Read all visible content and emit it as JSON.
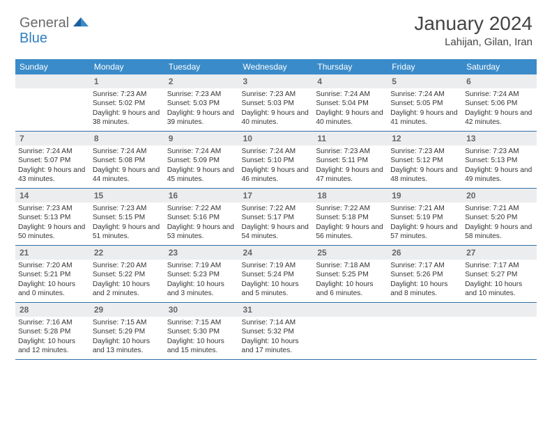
{
  "brand": {
    "part1": "General",
    "part2": "Blue"
  },
  "title": "January 2024",
  "location": "Lahijan, Gilan, Iran",
  "headerColor": "#3a8bc9",
  "borderColor": "#2f6fa8",
  "dayHeaderBg": "#ebedef",
  "weekdays": [
    "Sunday",
    "Monday",
    "Tuesday",
    "Wednesday",
    "Thursday",
    "Friday",
    "Saturday"
  ],
  "weeks": [
    [
      null,
      {
        "n": "1",
        "sr": "7:23 AM",
        "ss": "5:02 PM",
        "dl": "9 hours and 38 minutes."
      },
      {
        "n": "2",
        "sr": "7:23 AM",
        "ss": "5:03 PM",
        "dl": "9 hours and 39 minutes."
      },
      {
        "n": "3",
        "sr": "7:23 AM",
        "ss": "5:03 PM",
        "dl": "9 hours and 40 minutes."
      },
      {
        "n": "4",
        "sr": "7:24 AM",
        "ss": "5:04 PM",
        "dl": "9 hours and 40 minutes."
      },
      {
        "n": "5",
        "sr": "7:24 AM",
        "ss": "5:05 PM",
        "dl": "9 hours and 41 minutes."
      },
      {
        "n": "6",
        "sr": "7:24 AM",
        "ss": "5:06 PM",
        "dl": "9 hours and 42 minutes."
      }
    ],
    [
      {
        "n": "7",
        "sr": "7:24 AM",
        "ss": "5:07 PM",
        "dl": "9 hours and 43 minutes."
      },
      {
        "n": "8",
        "sr": "7:24 AM",
        "ss": "5:08 PM",
        "dl": "9 hours and 44 minutes."
      },
      {
        "n": "9",
        "sr": "7:24 AM",
        "ss": "5:09 PM",
        "dl": "9 hours and 45 minutes."
      },
      {
        "n": "10",
        "sr": "7:24 AM",
        "ss": "5:10 PM",
        "dl": "9 hours and 46 minutes."
      },
      {
        "n": "11",
        "sr": "7:23 AM",
        "ss": "5:11 PM",
        "dl": "9 hours and 47 minutes."
      },
      {
        "n": "12",
        "sr": "7:23 AM",
        "ss": "5:12 PM",
        "dl": "9 hours and 48 minutes."
      },
      {
        "n": "13",
        "sr": "7:23 AM",
        "ss": "5:13 PM",
        "dl": "9 hours and 49 minutes."
      }
    ],
    [
      {
        "n": "14",
        "sr": "7:23 AM",
        "ss": "5:13 PM",
        "dl": "9 hours and 50 minutes."
      },
      {
        "n": "15",
        "sr": "7:23 AM",
        "ss": "5:15 PM",
        "dl": "9 hours and 51 minutes."
      },
      {
        "n": "16",
        "sr": "7:22 AM",
        "ss": "5:16 PM",
        "dl": "9 hours and 53 minutes."
      },
      {
        "n": "17",
        "sr": "7:22 AM",
        "ss": "5:17 PM",
        "dl": "9 hours and 54 minutes."
      },
      {
        "n": "18",
        "sr": "7:22 AM",
        "ss": "5:18 PM",
        "dl": "9 hours and 56 minutes."
      },
      {
        "n": "19",
        "sr": "7:21 AM",
        "ss": "5:19 PM",
        "dl": "9 hours and 57 minutes."
      },
      {
        "n": "20",
        "sr": "7:21 AM",
        "ss": "5:20 PM",
        "dl": "9 hours and 58 minutes."
      }
    ],
    [
      {
        "n": "21",
        "sr": "7:20 AM",
        "ss": "5:21 PM",
        "dl": "10 hours and 0 minutes."
      },
      {
        "n": "22",
        "sr": "7:20 AM",
        "ss": "5:22 PM",
        "dl": "10 hours and 2 minutes."
      },
      {
        "n": "23",
        "sr": "7:19 AM",
        "ss": "5:23 PM",
        "dl": "10 hours and 3 minutes."
      },
      {
        "n": "24",
        "sr": "7:19 AM",
        "ss": "5:24 PM",
        "dl": "10 hours and 5 minutes."
      },
      {
        "n": "25",
        "sr": "7:18 AM",
        "ss": "5:25 PM",
        "dl": "10 hours and 6 minutes."
      },
      {
        "n": "26",
        "sr": "7:17 AM",
        "ss": "5:26 PM",
        "dl": "10 hours and 8 minutes."
      },
      {
        "n": "27",
        "sr": "7:17 AM",
        "ss": "5:27 PM",
        "dl": "10 hours and 10 minutes."
      }
    ],
    [
      {
        "n": "28",
        "sr": "7:16 AM",
        "ss": "5:28 PM",
        "dl": "10 hours and 12 minutes."
      },
      {
        "n": "29",
        "sr": "7:15 AM",
        "ss": "5:29 PM",
        "dl": "10 hours and 13 minutes."
      },
      {
        "n": "30",
        "sr": "7:15 AM",
        "ss": "5:30 PM",
        "dl": "10 hours and 15 minutes."
      },
      {
        "n": "31",
        "sr": "7:14 AM",
        "ss": "5:32 PM",
        "dl": "10 hours and 17 minutes."
      },
      null,
      null,
      null
    ]
  ],
  "labels": {
    "sunrise": "Sunrise:",
    "sunset": "Sunset:",
    "daylight": "Daylight:"
  }
}
